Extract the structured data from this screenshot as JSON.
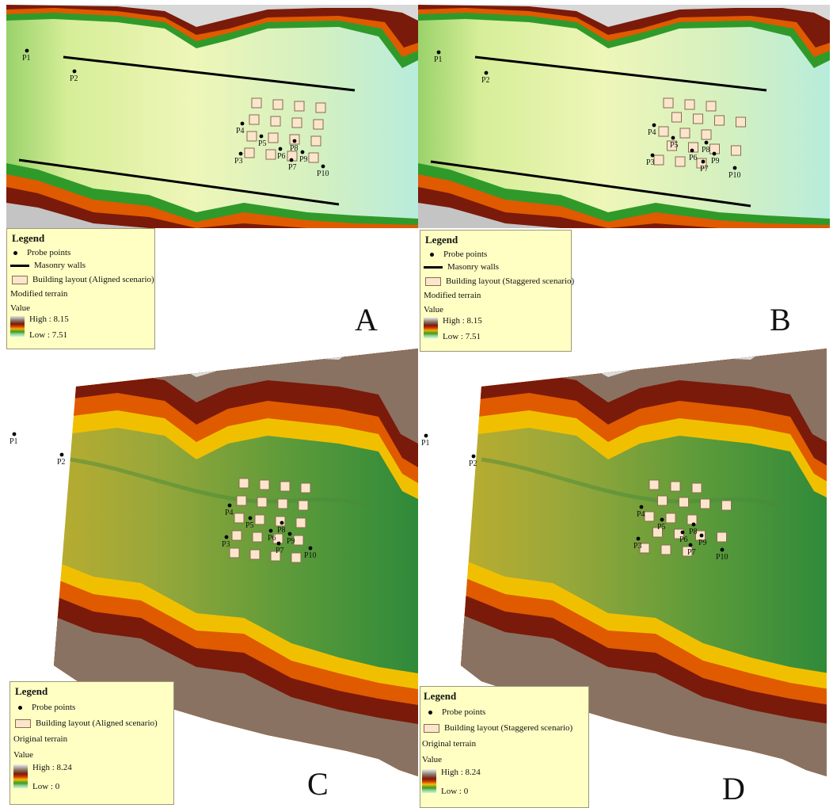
{
  "panels": [
    {
      "id": "A",
      "letter": "A",
      "legend": {
        "title": "Legend",
        "probe_label": "Probe points",
        "wall_label": "Masonry walls",
        "building_label": "Building layout (Aligned scenario)",
        "terrain_label": "Modified terrain",
        "value_label": "Value",
        "high": "High : 8.15",
        "low": "Low : 7.51"
      },
      "probe_points": [
        "P1",
        "P2",
        "P3",
        "P4",
        "P5",
        "P6",
        "P7",
        "P8",
        "P9",
        "P10"
      ]
    },
    {
      "id": "B",
      "letter": "B",
      "legend": {
        "title": "Legend",
        "probe_label": "Probe points",
        "wall_label": "Masonry walls",
        "building_label": "Building layout (Staggered scenario)",
        "terrain_label": "Modified terrain",
        "value_label": "Value",
        "high": "High : 8.15",
        "low": "Low : 7.51"
      },
      "probe_points": [
        "P1",
        "P2",
        "P3",
        "P4",
        "P5",
        "P6",
        "P7",
        "P8",
        "P9",
        "P10"
      ]
    },
    {
      "id": "C",
      "letter": "C",
      "legend": {
        "title": "Legend",
        "probe_label": "Probe points",
        "building_label": "Building layout (Aligned scenario)",
        "terrain_label": "Original terrain",
        "value_label": "Value",
        "high": "High : 8.24",
        "low": "Low : 0"
      },
      "probe_points": [
        "P1",
        "P2",
        "P3",
        "P4",
        "P5",
        "P6",
        "P7",
        "P8",
        "P9",
        "P10"
      ]
    },
    {
      "id": "D",
      "letter": "D",
      "legend": {
        "title": "Legend",
        "probe_label": "Probe points",
        "building_label": "Building layout (Staggered scenario)",
        "terrain_label": "Original terrain",
        "value_label": "Value",
        "high": "High : 8.24",
        "low": "Low : 0"
      },
      "probe_points": [
        "P1",
        "P2",
        "P3",
        "P4",
        "P5",
        "P6",
        "P7",
        "P8",
        "P9",
        "P10"
      ]
    }
  ],
  "colors": {
    "high_gray": "#dcdcdc",
    "brown": "#7a1a0a",
    "orange": "#e05a00",
    "yellow": "#f0c000",
    "green": "#2f9a2a",
    "light_green": "#cdeeb0",
    "cyan": "#bfeee8",
    "building_fill": "#fbe6cc",
    "legend_bg": "#ffffc4"
  }
}
